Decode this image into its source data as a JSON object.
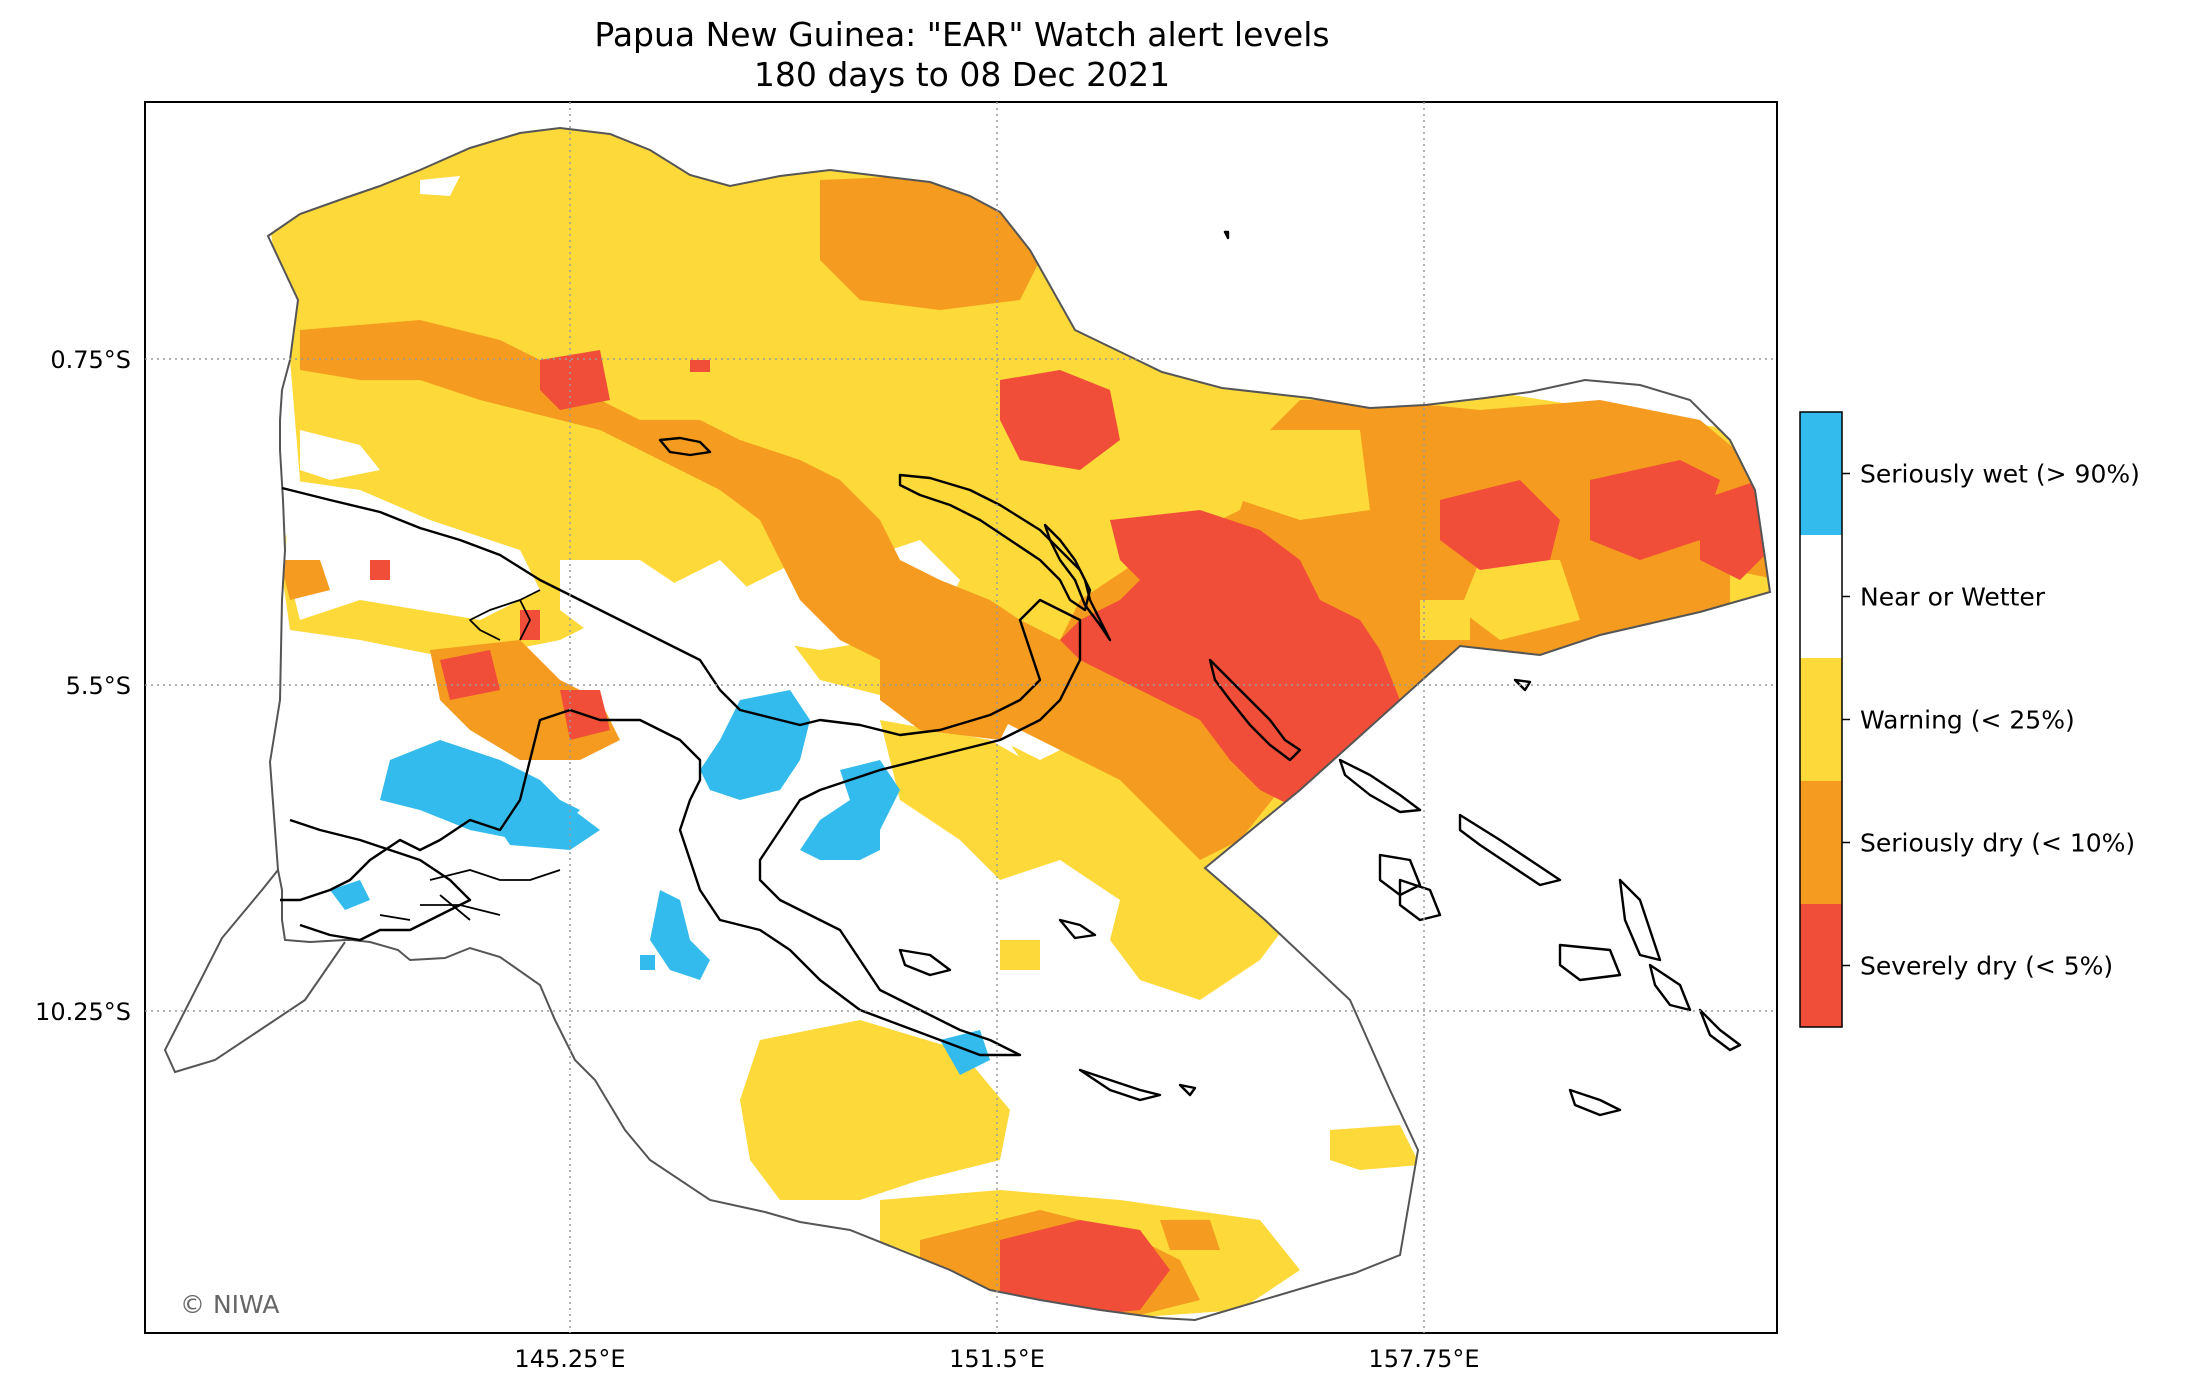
{
  "title": {
    "line1": "Papua New Guinea: \"EAR\" Watch alert levels",
    "line2": "180 days to 08 Dec 2021"
  },
  "axes": {
    "lon_ticks": [
      {
        "value": 145.25,
        "label": "145.25°E"
      },
      {
        "value": 151.5,
        "label": "151.5°E"
      },
      {
        "value": 157.75,
        "label": "157.75°E"
      }
    ],
    "lat_ticks": [
      {
        "value": -0.75,
        "label": "0.75°S"
      },
      {
        "value": -5.5,
        "label": "5.5°S"
      },
      {
        "value": -10.25,
        "label": "10.25°S"
      }
    ],
    "gridlines": true
  },
  "legend": {
    "placement": "right",
    "items": [
      {
        "label": "Seriously wet (> 90%)",
        "color": "#33bbee"
      },
      {
        "label": "Near or Wetter",
        "color": "#ffffff"
      },
      {
        "label": "Warning (< 25%)",
        "color": "#fdd93a"
      },
      {
        "label": "Seriously dry (< 10%)",
        "color": "#f59b1f"
      },
      {
        "label": "Severely dry (< 5%)",
        "color": "#f04e38"
      }
    ]
  },
  "credit": "© NIWA"
}
